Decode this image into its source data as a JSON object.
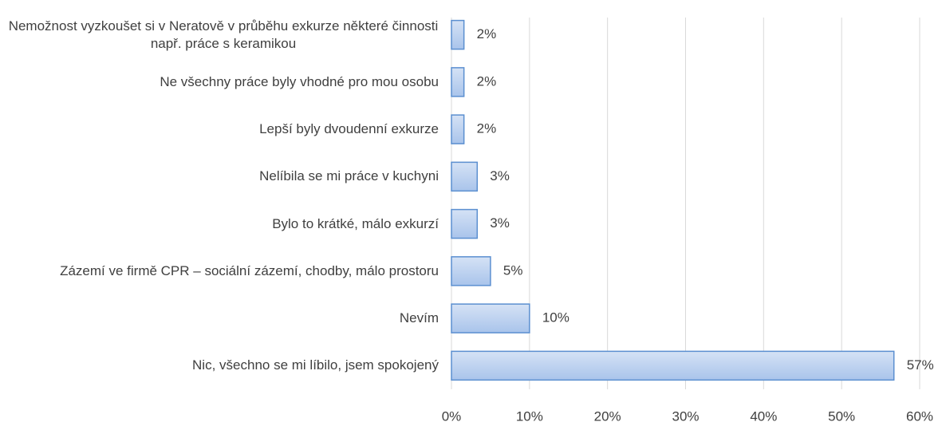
{
  "chart_data": {
    "type": "hbar",
    "categories": [
      "Nemožnost vyzkoušet si v Neratově v průběhu exkurze některé činnosti např. práce s keramikou",
      "Ne všechny práce byly vhodné pro mou osobu",
      "Lepší byly dvoudenní exkurze",
      "Nelíbila se mi práce v kuchyni",
      "Bylo to krátké, málo exkurzí",
      "Zázemí ve firmě CPR – sociální zázemí, chodby, málo prostoru",
      "Nevím",
      "Nic, všechno se mi líbilo, jsem spokojený"
    ],
    "values": [
      1.6,
      1.6,
      1.6,
      3.3,
      3.3,
      5,
      10,
      56.7
    ],
    "value_labels": [
      "2%",
      "2%",
      "2%",
      "3%",
      "3%",
      "5%",
      "10%",
      "57%"
    ],
    "color": "#a9c4eb",
    "xlim": [
      0,
      60
    ],
    "xticks": [
      {
        "value": 0,
        "label": "0%"
      },
      {
        "value": 10,
        "label": "10%"
      },
      {
        "value": 20,
        "label": "20%"
      },
      {
        "value": 30,
        "label": "30%"
      },
      {
        "value": 40,
        "label": "40%"
      },
      {
        "value": 50,
        "label": "50%"
      },
      {
        "value": 60,
        "label": "60%"
      }
    ],
    "grid": true
  }
}
